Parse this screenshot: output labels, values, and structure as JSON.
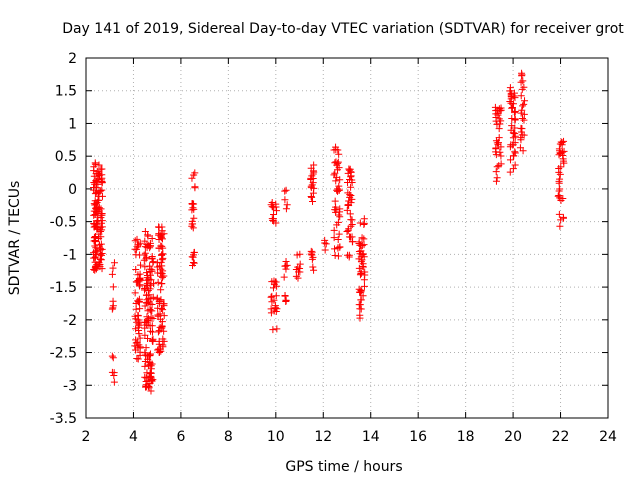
{
  "chart_data": {
    "type": "scatter",
    "title": "Day 141 of 2019, Sidereal Day-to-day VTEC variation (SDTVAR) for receiver grot",
    "xlabel": "GPS time / hours",
    "ylabel": "SDTVAR / TECUs",
    "xlim": [
      2,
      24
    ],
    "ylim": [
      -3.5,
      2
    ],
    "xticks": [
      2,
      4,
      6,
      8,
      10,
      12,
      14,
      16,
      18,
      20,
      22,
      24
    ],
    "yticks": [
      -3.5,
      -3,
      -2.5,
      -2,
      -1.5,
      -1,
      -0.5,
      0,
      0.5,
      1,
      1.5,
      2
    ],
    "xtick_labels": [
      "2",
      "4",
      "6",
      "8",
      "10",
      "12",
      "14",
      "16",
      "18",
      "20",
      "22",
      "24"
    ],
    "ytick_labels": [
      "-3.5",
      "-3",
      "-2.5",
      "-2",
      "-1.5",
      "-1",
      "-0.5",
      "0",
      "0.5",
      "1",
      "1.5",
      "2"
    ],
    "grid": true,
    "marker": "+",
    "marker_color": "#ff0000",
    "clusters": [
      {
        "x": [
          2.3,
          2.7
        ],
        "y": [
          -1.25,
          0.4
        ],
        "n": 130
      },
      {
        "x": [
          3.1,
          3.2
        ],
        "y": [
          -1.95,
          -1.05
        ],
        "n": 8
      },
      {
        "x": [
          3.1,
          3.2
        ],
        "y": [
          -3.05,
          -2.45
        ],
        "n": 6
      },
      {
        "x": [
          4.05,
          4.3
        ],
        "y": [
          -2.6,
          -0.75
        ],
        "n": 60
      },
      {
        "x": [
          4.45,
          4.85
        ],
        "y": [
          -3.1,
          -0.65
        ],
        "n": 130
      },
      {
        "x": [
          5.0,
          5.3
        ],
        "y": [
          -2.5,
          -0.55
        ],
        "n": 80
      },
      {
        "x": [
          6.45,
          6.6
        ],
        "y": [
          -0.65,
          0.25
        ],
        "n": 18
      },
      {
        "x": [
          6.45,
          6.6
        ],
        "y": [
          -1.2,
          -0.95
        ],
        "n": 8
      },
      {
        "x": [
          9.8,
          10.05
        ],
        "y": [
          -0.55,
          -0.15
        ],
        "n": 14
      },
      {
        "x": [
          9.8,
          10.05
        ],
        "y": [
          -2.15,
          -1.4
        ],
        "n": 22
      },
      {
        "x": [
          10.35,
          10.5
        ],
        "y": [
          -0.35,
          0.05
        ],
        "n": 5
      },
      {
        "x": [
          10.35,
          10.5
        ],
        "y": [
          -1.85,
          -1.05
        ],
        "n": 12
      },
      {
        "x": [
          10.85,
          11.05
        ],
        "y": [
          -1.45,
          -0.9
        ],
        "n": 10
      },
      {
        "x": [
          11.45,
          11.6
        ],
        "y": [
          -0.35,
          0.4
        ],
        "n": 18
      },
      {
        "x": [
          11.45,
          11.6
        ],
        "y": [
          -1.25,
          -0.95
        ],
        "n": 8
      },
      {
        "x": [
          12.0,
          12.15
        ],
        "y": [
          -0.95,
          -0.75
        ],
        "n": 4
      },
      {
        "x": [
          12.45,
          12.7
        ],
        "y": [
          -1.05,
          0.65
        ],
        "n": 45
      },
      {
        "x": [
          13.0,
          13.25
        ],
        "y": [
          -1.05,
          0.4
        ],
        "n": 40
      },
      {
        "x": [
          13.5,
          13.75
        ],
        "y": [
          -2.0,
          -0.35
        ],
        "n": 50
      },
      {
        "x": [
          19.25,
          19.5
        ],
        "y": [
          0.1,
          1.3
        ],
        "n": 35
      },
      {
        "x": [
          19.85,
          20.1
        ],
        "y": [
          0.25,
          1.6
        ],
        "n": 45
      },
      {
        "x": [
          20.3,
          20.5
        ],
        "y": [
          0.5,
          1.8
        ],
        "n": 25
      },
      {
        "x": [
          21.9,
          22.15
        ],
        "y": [
          -0.6,
          0.75
        ],
        "n": 35
      }
    ]
  }
}
